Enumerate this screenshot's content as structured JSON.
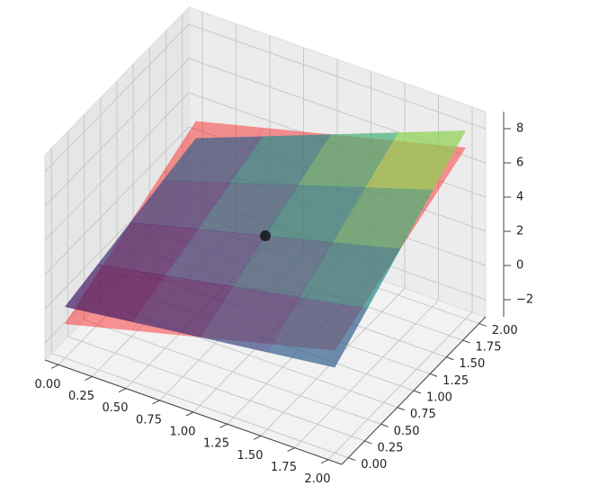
{
  "chart_data": {
    "type": "surface3d",
    "xlim": [
      -0.1,
      2.1
    ],
    "ylim": [
      -0.1,
      2.1
    ],
    "zlim": [
      -3,
      9
    ],
    "xticks": [
      {
        "value": 0,
        "label": "0.00"
      },
      {
        "value": 0.25,
        "label": "0.25"
      },
      {
        "value": 0.5,
        "label": "0.50"
      },
      {
        "value": 0.75,
        "label": "0.75"
      },
      {
        "value": 1,
        "label": "1.00"
      },
      {
        "value": 1.25,
        "label": "1.25"
      },
      {
        "value": 1.5,
        "label": "1.50"
      },
      {
        "value": 1.75,
        "label": "1.75"
      },
      {
        "value": 2,
        "label": "2.00"
      }
    ],
    "yticks": [
      {
        "value": 0,
        "label": "0.00"
      },
      {
        "value": 0.25,
        "label": "0.25"
      },
      {
        "value": 0.5,
        "label": "0.50"
      },
      {
        "value": 0.75,
        "label": "0.75"
      },
      {
        "value": 1,
        "label": "1.00"
      },
      {
        "value": 1.25,
        "label": "1.25"
      },
      {
        "value": 1.5,
        "label": "1.50"
      },
      {
        "value": 1.75,
        "label": "1.75"
      },
      {
        "value": 2,
        "label": "2.00"
      }
    ],
    "zticks": [
      {
        "value": -2,
        "label": "−2"
      },
      0,
      2,
      4,
      6,
      8
    ],
    "grid": true,
    "x": [
      0,
      0.5,
      1,
      1.5,
      2
    ],
    "y": [
      0,
      0.5,
      1,
      1.5,
      2
    ],
    "surfaces": [
      {
        "color": "#ff0000",
        "alpha": 0.4,
        "z": [
          [
            -1,
            0,
            1,
            2,
            3
          ],
          [
            0,
            1,
            2,
            3,
            4
          ],
          [
            1,
            2,
            3,
            4,
            5
          ],
          [
            2,
            3,
            4,
            5,
            6
          ],
          [
            3,
            4,
            5,
            6,
            7
          ]
        ]
      },
      {
        "colormap": [
          "#440154",
          "#3b528b",
          "#21918c",
          "#5ec962",
          "#fde725"
        ],
        "alpha": 0.7,
        "z": [
          [
            0,
            0.5,
            1,
            1.5,
            2
          ],
          [
            0.5,
            1.25,
            2,
            2.75,
            3.5
          ],
          [
            1,
            2,
            3,
            4,
            5
          ],
          [
            1.5,
            2.75,
            4,
            5.25,
            6.5
          ],
          [
            2,
            3.5,
            5,
            6.5,
            8
          ]
        ]
      }
    ],
    "point": {
      "x": 1,
      "y": 1,
      "z": 3,
      "color": "#000000"
    }
  }
}
